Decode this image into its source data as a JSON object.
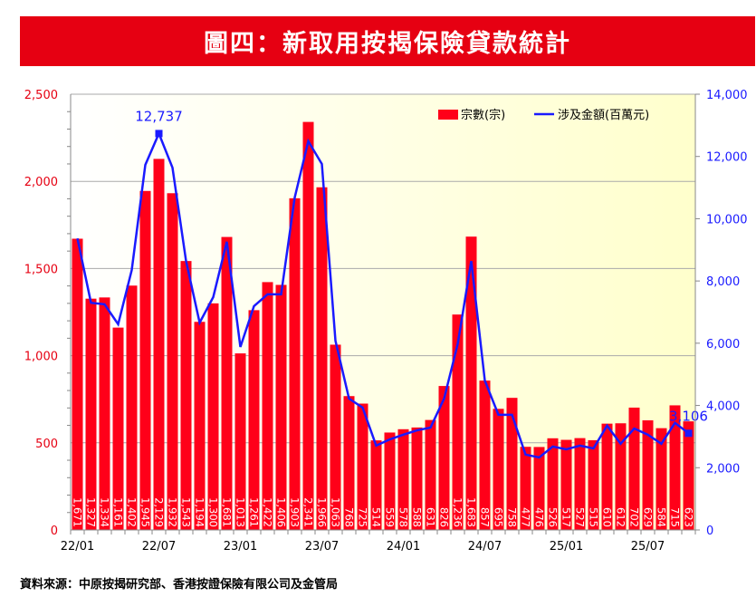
{
  "title": "圖四：新取用按揭保險貸款統計",
  "source": "資料來源：中原按揭研究部、香港按證保險有限公司及金管局",
  "chart_data": {
    "type": "bar+line",
    "title": "圖四：新取用按揭保險貸款統計",
    "categories": [
      "22/01",
      "22/02",
      "22/03",
      "22/04",
      "22/05",
      "22/06",
      "22/07",
      "22/08",
      "22/09",
      "22/10",
      "22/11",
      "22/12",
      "23/01",
      "23/02",
      "23/03",
      "23/04",
      "23/05",
      "23/06",
      "23/07",
      "23/08",
      "23/09",
      "23/10",
      "23/11",
      "23/12",
      "24/01",
      "24/02",
      "24/03",
      "24/04",
      "24/05",
      "24/06",
      "24/07",
      "24/08",
      "24/09",
      "24/10",
      "24/11",
      "24/12",
      "25/01",
      "25/02",
      "25/03",
      "25/04",
      "25/05",
      "25/06",
      "25/07",
      "25/08",
      "25/09",
      "25/10"
    ],
    "x_tick_labels": [
      "22/01",
      "22/07",
      "23/01",
      "23/07",
      "24/01",
      "24/07",
      "25/01",
      "25/07"
    ],
    "series": [
      {
        "name": "宗數(宗)",
        "type": "bar",
        "axis": "left",
        "color": "#ff0019",
        "values": [
          1671,
          1327,
          1334,
          1161,
          1402,
          1945,
          2129,
          1932,
          1543,
          1194,
          1300,
          1681,
          1013,
          1261,
          1422,
          1406,
          1903,
          2341,
          1966,
          1063,
          768,
          725,
          514,
          559,
          578,
          588,
          631,
          826,
          1236,
          1683,
          857,
          695,
          758,
          477,
          476,
          526,
          517,
          527,
          515,
          610,
          612,
          702,
          629,
          584,
          715,
          623
        ],
        "labels": [
          "1,671",
          "1,327",
          "1,334",
          "1,161",
          "1,402",
          "1,945",
          "2,129",
          "1,932",
          "1,543",
          "1,194",
          "1,300",
          "1,681",
          "1,013",
          "1,261",
          "1,422",
          "1,406",
          "1,903",
          "2,341",
          "1,966",
          "1,063",
          "768",
          "725",
          "514",
          "559",
          "578",
          "588",
          "631",
          "826",
          "1,236",
          "1,683",
          "857",
          "695",
          "758",
          "477",
          "476",
          "526",
          "517",
          "527",
          "515",
          "610",
          "612",
          "702",
          "629",
          "584",
          "715",
          "623"
        ]
      },
      {
        "name": "涉及金額(百萬元)",
        "type": "line",
        "axis": "right",
        "color": "#1a1aff",
        "values": [
          9370,
          7300,
          7250,
          6610,
          8350,
          11730,
          12737,
          11640,
          8640,
          6660,
          7480,
          9260,
          5880,
          7190,
          7570,
          7570,
          10680,
          12490,
          11760,
          6080,
          4220,
          3930,
          2710,
          2910,
          3060,
          3200,
          3290,
          4220,
          5970,
          8640,
          4800,
          3700,
          3700,
          2420,
          2330,
          2680,
          2590,
          2710,
          2620,
          3350,
          2770,
          3260,
          3060,
          2770,
          3440,
          3106
        ],
        "annotations": [
          {
            "index": 6,
            "label": "12,737"
          },
          {
            "index": 45,
            "label": "3,106"
          }
        ]
      }
    ],
    "left_axis": {
      "range": [
        0,
        2500
      ],
      "ticks": [
        "0",
        "500",
        "1,000",
        "1,500",
        "2,000",
        "2,500"
      ],
      "color": "#e60012"
    },
    "right_axis": {
      "range": [
        0,
        14000
      ],
      "ticks": [
        "0",
        "2,000",
        "4,000",
        "6,000",
        "8,000",
        "10,000",
        "12,000",
        "14,000"
      ],
      "color": "#1a1aff"
    },
    "grid": true,
    "legend": "top-right"
  }
}
